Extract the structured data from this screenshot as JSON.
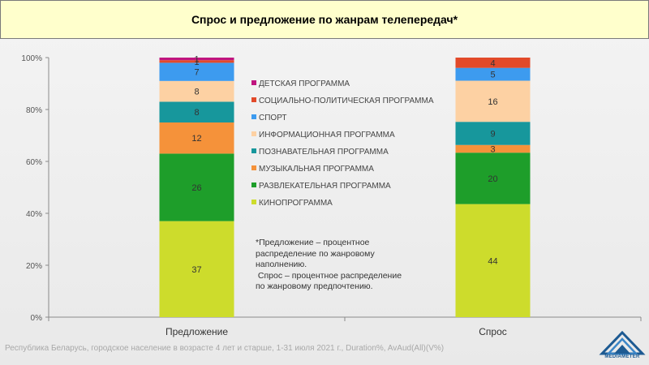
{
  "title": "Спрос и предложение по жанрам телепередач*",
  "chart_data": {
    "type": "bar",
    "stacked": true,
    "percent": true,
    "categories": [
      "Предложение",
      "Спрос"
    ],
    "yticks": [
      "0%",
      "20%",
      "40%",
      "60%",
      "80%",
      "100%"
    ],
    "ylim": [
      0,
      100
    ],
    "grid": false,
    "legend_position": "center",
    "series": [
      {
        "name": "КИНОПРОГРАММА",
        "color": "#cddc2c",
        "values": [
          37,
          44
        ]
      },
      {
        "name": "РАЗВЛЕКАТЕЛЬНАЯ ПРОГРАММА",
        "color": "#1e9e2a",
        "values": [
          26,
          20
        ]
      },
      {
        "name": "МУЗЫКАЛЬНАЯ ПРОГРАММА",
        "color": "#f5923a",
        "values": [
          12,
          3
        ]
      },
      {
        "name": "ПОЗНАВАТЕЛЬНАЯ ПРОГРАММА",
        "color": "#17979c",
        "values": [
          8,
          9
        ]
      },
      {
        "name": "ИНФОРМАЦИОННАЯ ПРОГРАММА",
        "color": "#fdd1a3",
        "values": [
          8,
          16
        ]
      },
      {
        "name": "СПОРТ",
        "color": "#3d9bef",
        "values": [
          7,
          5
        ]
      },
      {
        "name": "СОЦИАЛЬНО-ПОЛИТИЧЕСКАЯ ПРОГРАММА",
        "color": "#e24a2a",
        "values": [
          1,
          4
        ]
      },
      {
        "name": "ДЕТСКАЯ ПРОГРАММА",
        "color": "#c0157f",
        "values": [
          1,
          0
        ]
      }
    ]
  },
  "note": {
    "lines": [
      "*Предложение – процентное",
      "распределение по жанровому",
      "наполнению.",
      " Спрос – процентное распределение",
      "по жанровому предпочтению."
    ]
  },
  "footer": "Республика  Беларусь,  городское население  в возрасте 4 лет  и старше,  1-31 июля 2021 г., Duration%, AvAud(All)(V%)",
  "logo_text": "MEDIAMETER"
}
